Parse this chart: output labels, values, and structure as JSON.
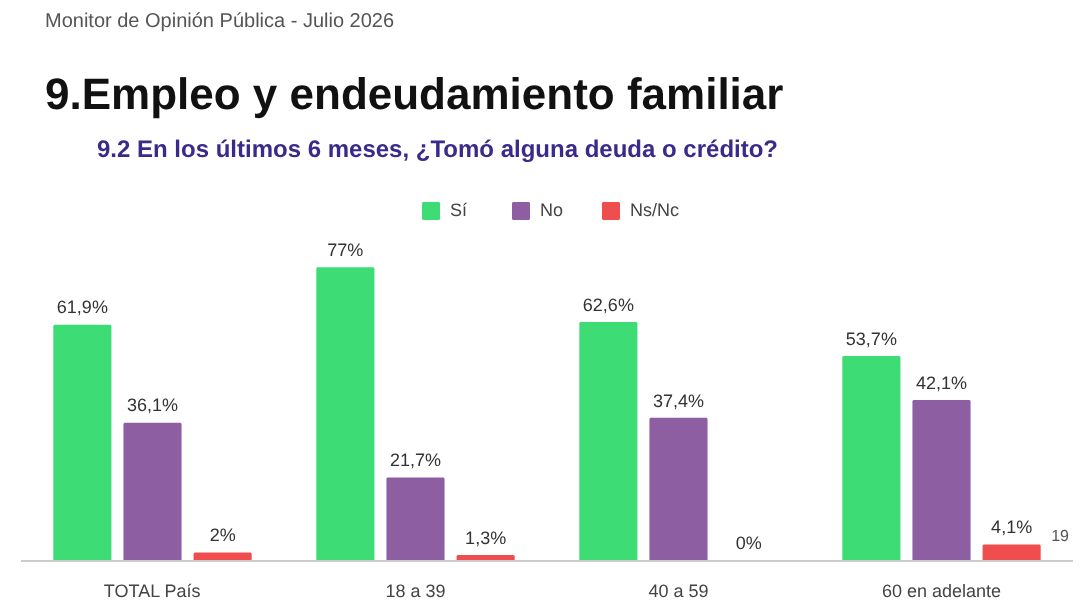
{
  "chart_data": {
    "type": "bar",
    "title": "9.Empleo y endeudamiento familiar",
    "subtitle": "9.2 En los últimos 6 meses, ¿Tomó alguna deuda o crédito?",
    "annotations": [
      "Monitor de Opinión Pública - Julio 2026",
      "19"
    ],
    "categories": [
      "TOTAL País",
      "18 a 39",
      "40 a 59",
      "60 en adelante"
    ],
    "series": [
      {
        "name": "Sí",
        "color": "#3ddc74",
        "values": [
          61.9,
          77,
          62.6,
          53.7
        ],
        "value_labels": [
          "61,9%",
          "77%",
          "62,6%",
          "53,7%"
        ]
      },
      {
        "name": "No",
        "color": "#8e5ea2",
        "values": [
          36.1,
          21.7,
          37.4,
          42.1
        ],
        "value_labels": [
          "36,1%",
          "21,7%",
          "37,4%",
          "42,1%"
        ]
      },
      {
        "name": "Ns/Nc",
        "color": "#f04e4e",
        "values": [
          2,
          1.3,
          0,
          4.1
        ],
        "value_labels": [
          "2%",
          "1,3%",
          "0%",
          "4,1%"
        ]
      }
    ],
    "legend": "top"
  }
}
